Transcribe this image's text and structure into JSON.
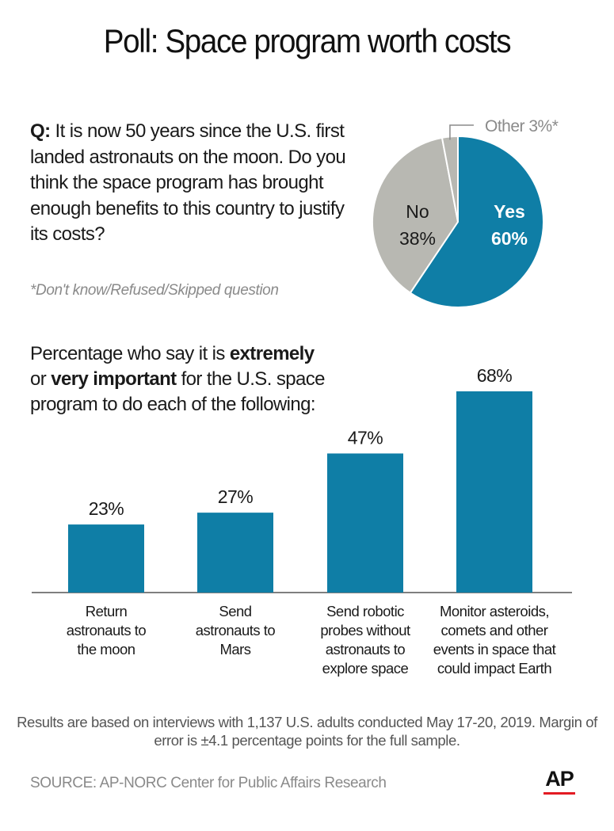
{
  "title": "Poll: Space program worth costs",
  "question": {
    "prefix": "Q:",
    "text": "It is now 50 years since the U.S. first landed astronauts on the moon. Do you think the space program has brought enough benefits to this country to justify its costs?"
  },
  "footnote": "*Don't know/Refused/Skipped question",
  "colors": {
    "blue": "#0f7ea6",
    "gray": "#b8b8b2",
    "axis": "#555555"
  },
  "chart_data": [
    {
      "type": "pie",
      "slices": [
        {
          "label": "Yes",
          "value": 60,
          "value_label": "60%",
          "color": "#0f7ea6"
        },
        {
          "label": "No",
          "value": 38,
          "value_label": "38%",
          "color": "#b8b8b2"
        },
        {
          "label": "Other",
          "value": 3,
          "value_label": "3%*",
          "color": "#b8b8b2"
        }
      ]
    },
    {
      "type": "bar",
      "title_parts": [
        "Percentage who say it is ",
        "extremely",
        " or ",
        "very important",
        " for the U.S. space program to do each of the following:"
      ],
      "categories": [
        [
          "Return",
          "astronauts to",
          "the moon"
        ],
        [
          "Send",
          "astronauts to",
          "Mars"
        ],
        [
          "Send robotic",
          "probes without",
          "astronauts to",
          "explore space"
        ],
        [
          "Monitor asteroids,",
          "comets and other",
          "events in space that",
          "could impact Earth"
        ]
      ],
      "values": [
        23,
        27,
        47,
        68
      ],
      "value_labels": [
        "23%",
        "27%",
        "47%",
        "68%"
      ],
      "unit": "%"
    }
  ],
  "note": "Results are based on interviews with 1,137 U.S. adults conducted May 17-20, 2019. Margin of error is ±4.1 percentage points for the full sample.",
  "source": "SOURCE: AP-NORC Center for Public Affairs Research",
  "logo": "AP"
}
